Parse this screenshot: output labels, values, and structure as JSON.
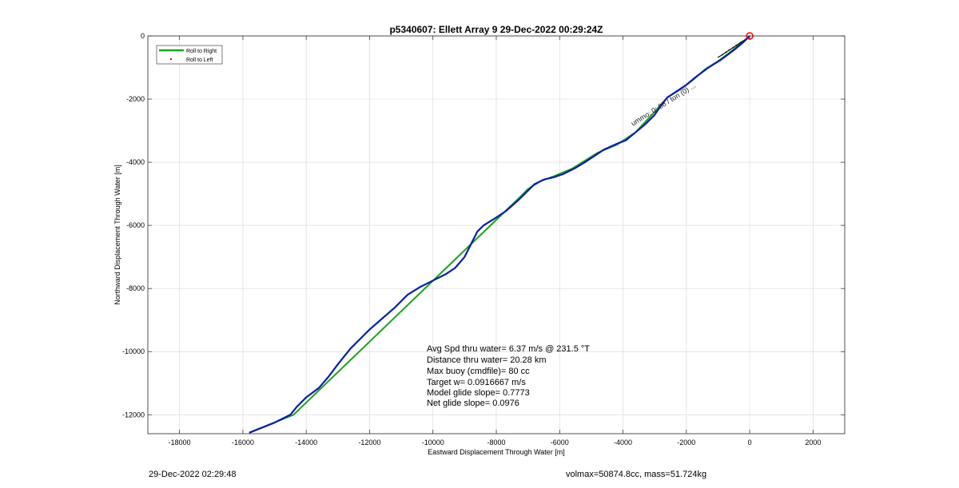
{
  "chart_data": {
    "type": "line",
    "title": "p5340607: Ellett Array 9 29-Dec-2022 00:29:24Z",
    "xlabel": "Eastward Displacement Through Water [m]",
    "ylabel": "Northward Displacement Through Water [m]",
    "xlim": [
      -19000,
      3000
    ],
    "ylim": [
      -12600,
      0
    ],
    "x_ticks": [
      -18000,
      -16000,
      -14000,
      -12000,
      -10000,
      -8000,
      -6000,
      -4000,
      -2000,
      0,
      2000
    ],
    "y_ticks": [
      0,
      -2000,
      -4000,
      -6000,
      -8000,
      -10000,
      -12000
    ],
    "grid": true,
    "legend_position": "top-left",
    "legend": [
      {
        "label": "Roll to Right",
        "color": "#1aa31a",
        "style": "line"
      },
      {
        "label": "Roll to Left",
        "color": "#ff0000",
        "style": "dot"
      }
    ],
    "series": [
      {
        "name": "Roll to Right",
        "color": "#1aa31a",
        "x": [
          -15800,
          -14400,
          -7300,
          -7000,
          -6600,
          -6200,
          -5600,
          -4800,
          -4200,
          -3600,
          -3000,
          -2600,
          -2200,
          -1800,
          -1400,
          -1000,
          -600,
          -300,
          0
        ],
        "y": [
          -12570,
          -12000,
          -5150,
          -4850,
          -4600,
          -4450,
          -4200,
          -3700,
          -3450,
          -3050,
          -2400,
          -1950,
          -1700,
          -1400,
          -1050,
          -800,
          -500,
          -250,
          0
        ]
      },
      {
        "color": "#0a1fa8",
        "x": [
          -15800,
          -15500,
          -15000,
          -14500,
          -14300,
          -14000,
          -13600,
          -13300,
          -13000,
          -12600,
          -12200,
          -12000,
          -11600,
          -11200,
          -10800,
          -10400,
          -10000,
          -9600,
          -9300,
          -9000,
          -8800,
          -8600,
          -8400,
          -8000,
          -7700,
          -7300,
          -7000,
          -6800,
          -6500,
          -6200,
          -5900,
          -5500,
          -5200,
          -4900,
          -4600,
          -4200,
          -3900,
          -3600,
          -3300,
          -3000,
          -2800,
          -2600,
          -2300,
          -2000,
          -1700,
          -1300,
          -900,
          -500,
          -200,
          0
        ],
        "y": [
          -12570,
          -12450,
          -12250,
          -12000,
          -11750,
          -11450,
          -11150,
          -10800,
          -10400,
          -9900,
          -9500,
          -9300,
          -8950,
          -8600,
          -8200,
          -7950,
          -7750,
          -7550,
          -7350,
          -7000,
          -6600,
          -6200,
          -6000,
          -5750,
          -5550,
          -5200,
          -4900,
          -4700,
          -4550,
          -4480,
          -4380,
          -4180,
          -4000,
          -3800,
          -3600,
          -3420,
          -3300,
          -3050,
          -2800,
          -2500,
          -2200,
          -1950,
          -1750,
          -1550,
          -1300,
          -1000,
          -750,
          -450,
          -200,
          0
        ]
      }
    ],
    "annotation_lines": [
      "Avg Spd thru water=  6.37 m/s @ 231.5 °T",
      "Distance thru water= 20.28 km",
      "Max buoy (cmdfile)= 80 cc",
      "Target w= 0.0916667 m/s",
      "Model glide slope= 0.7773",
      "Net glide slope= 0.0976"
    ],
    "rotated_label": "ummo: 0: 88 / ton (0) ...",
    "start_marker": {
      "x": 0,
      "y": 0,
      "color": "#ff0000"
    }
  },
  "footer": {
    "timestamp": "29-Dec-2022 02:29:48",
    "volume_mass": "volmax=50874.8cc, mass=51.724kg"
  }
}
